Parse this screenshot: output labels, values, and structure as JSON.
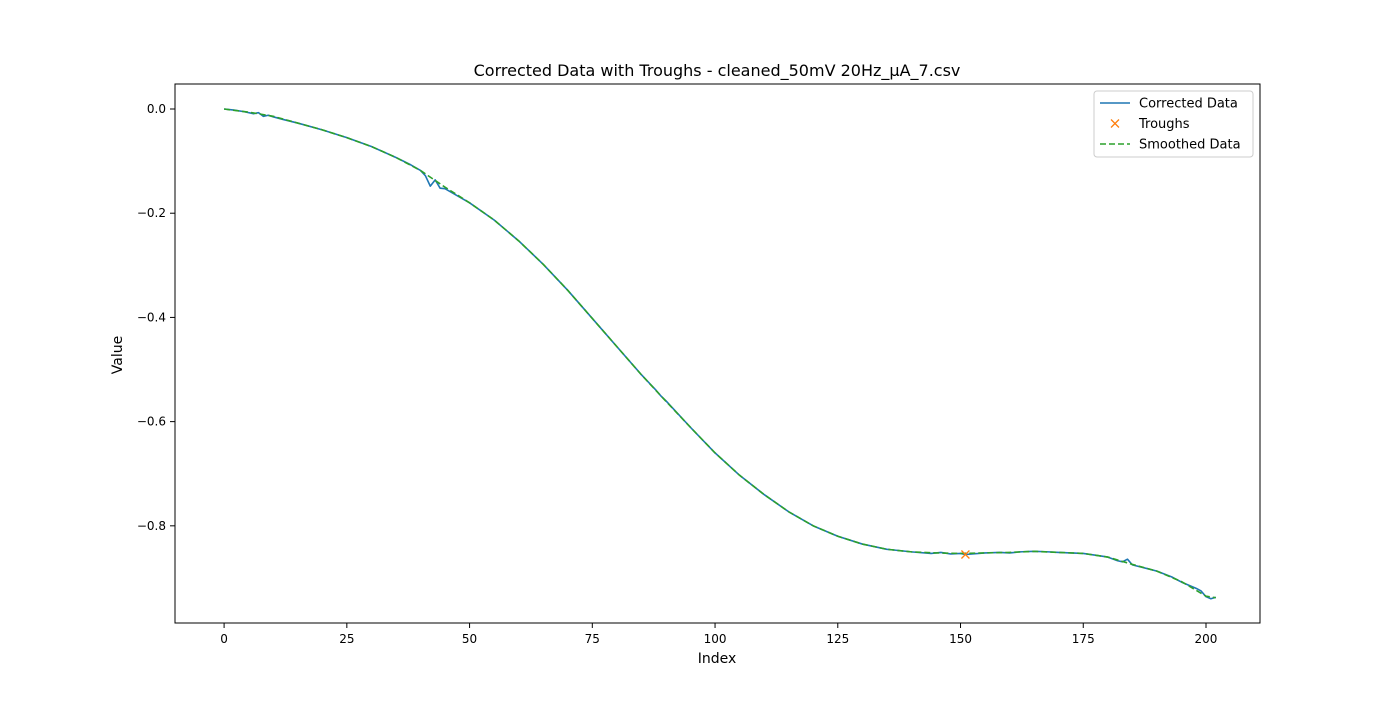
{
  "chart_data": {
    "type": "line",
    "title": "Corrected Data with Troughs - cleaned_50mV 20Hz_µA_7.csv",
    "xlabel": "Index",
    "ylabel": "Value",
    "xlim": [
      -10,
      211
    ],
    "ylim": [
      -0.9865,
      0.048
    ],
    "xticks": [
      0,
      25,
      50,
      75,
      100,
      125,
      150,
      175,
      200
    ],
    "xtick_labels": [
      "0",
      "25",
      "50",
      "75",
      "100",
      "125",
      "150",
      "175",
      "200"
    ],
    "yticks": [
      0.0,
      -0.2,
      -0.4,
      -0.6,
      -0.8
    ],
    "ytick_labels": [
      "0.0",
      "−0.2",
      "−0.4",
      "−0.6",
      "−0.8"
    ],
    "grid": false,
    "legend_position": "top-right",
    "series": [
      {
        "name": "Corrected Data",
        "style": "solid",
        "color": "#1f77b4",
        "points": [
          [
            0,
            0.0
          ],
          [
            2,
            -0.002
          ],
          [
            4,
            -0.005
          ],
          [
            6,
            -0.009
          ],
          [
            7,
            -0.007
          ],
          [
            8,
            -0.014
          ],
          [
            9,
            -0.012
          ],
          [
            10,
            -0.015
          ],
          [
            12,
            -0.02
          ],
          [
            15,
            -0.027
          ],
          [
            20,
            -0.04
          ],
          [
            25,
            -0.055
          ],
          [
            30,
            -0.072
          ],
          [
            35,
            -0.093
          ],
          [
            38,
            -0.107
          ],
          [
            40,
            -0.118
          ],
          [
            41,
            -0.128
          ],
          [
            42,
            -0.148
          ],
          [
            43,
            -0.136
          ],
          [
            44,
            -0.152
          ],
          [
            45,
            -0.153
          ],
          [
            50,
            -0.18
          ],
          [
            55,
            -0.213
          ],
          [
            60,
            -0.253
          ],
          [
            65,
            -0.298
          ],
          [
            70,
            -0.348
          ],
          [
            75,
            -0.402
          ],
          [
            80,
            -0.456
          ],
          [
            85,
            -0.51
          ],
          [
            88,
            -0.54
          ],
          [
            89,
            -0.551
          ],
          [
            90,
            -0.56
          ],
          [
            95,
            -0.611
          ],
          [
            100,
            -0.66
          ],
          [
            105,
            -0.703
          ],
          [
            110,
            -0.74
          ],
          [
            115,
            -0.773
          ],
          [
            120,
            -0.8
          ],
          [
            125,
            -0.82
          ],
          [
            130,
            -0.835
          ],
          [
            135,
            -0.845
          ],
          [
            140,
            -0.85
          ],
          [
            144,
            -0.853
          ],
          [
            146,
            -0.851
          ],
          [
            148,
            -0.854
          ],
          [
            150,
            -0.853
          ],
          [
            151,
            -0.855
          ],
          [
            155,
            -0.852
          ],
          [
            158,
            -0.851
          ],
          [
            160,
            -0.852
          ],
          [
            162,
            -0.85
          ],
          [
            165,
            -0.849
          ],
          [
            168,
            -0.85
          ],
          [
            170,
            -0.851
          ],
          [
            175,
            -0.853
          ],
          [
            178,
            -0.857
          ],
          [
            180,
            -0.86
          ],
          [
            182,
            -0.867
          ],
          [
            183,
            -0.869
          ],
          [
            184,
            -0.864
          ],
          [
            185,
            -0.875
          ],
          [
            188,
            -0.882
          ],
          [
            190,
            -0.887
          ],
          [
            193,
            -0.898
          ],
          [
            195,
            -0.908
          ],
          [
            198,
            -0.92
          ],
          [
            199,
            -0.925
          ],
          [
            200,
            -0.936
          ],
          [
            201,
            -0.94
          ],
          [
            202,
            -0.937
          ]
        ]
      },
      {
        "name": "Troughs",
        "style": "marker-x",
        "color": "#ff7f0e",
        "points": [
          [
            151,
            -0.855
          ]
        ]
      },
      {
        "name": "Smoothed Data",
        "style": "dashed",
        "color": "#2ca02c",
        "points": [
          [
            0,
            0.0
          ],
          [
            5,
            -0.006
          ],
          [
            10,
            -0.014
          ],
          [
            15,
            -0.027
          ],
          [
            20,
            -0.04
          ],
          [
            25,
            -0.055
          ],
          [
            30,
            -0.072
          ],
          [
            35,
            -0.093
          ],
          [
            40,
            -0.118
          ],
          [
            45,
            -0.15
          ],
          [
            50,
            -0.18
          ],
          [
            55,
            -0.213
          ],
          [
            60,
            -0.253
          ],
          [
            65,
            -0.298
          ],
          [
            70,
            -0.348
          ],
          [
            75,
            -0.402
          ],
          [
            80,
            -0.456
          ],
          [
            85,
            -0.51
          ],
          [
            90,
            -0.561
          ],
          [
            95,
            -0.611
          ],
          [
            100,
            -0.66
          ],
          [
            105,
            -0.703
          ],
          [
            110,
            -0.74
          ],
          [
            115,
            -0.773
          ],
          [
            120,
            -0.8
          ],
          [
            125,
            -0.82
          ],
          [
            130,
            -0.835
          ],
          [
            135,
            -0.845
          ],
          [
            140,
            -0.85
          ],
          [
            145,
            -0.852
          ],
          [
            150,
            -0.853
          ],
          [
            155,
            -0.852
          ],
          [
            160,
            -0.851
          ],
          [
            165,
            -0.849
          ],
          [
            170,
            -0.851
          ],
          [
            175,
            -0.853
          ],
          [
            180,
            -0.86
          ],
          [
            185,
            -0.874
          ],
          [
            190,
            -0.887
          ],
          [
            195,
            -0.907
          ],
          [
            200,
            -0.935
          ],
          [
            202,
            -0.938
          ]
        ]
      }
    ]
  }
}
